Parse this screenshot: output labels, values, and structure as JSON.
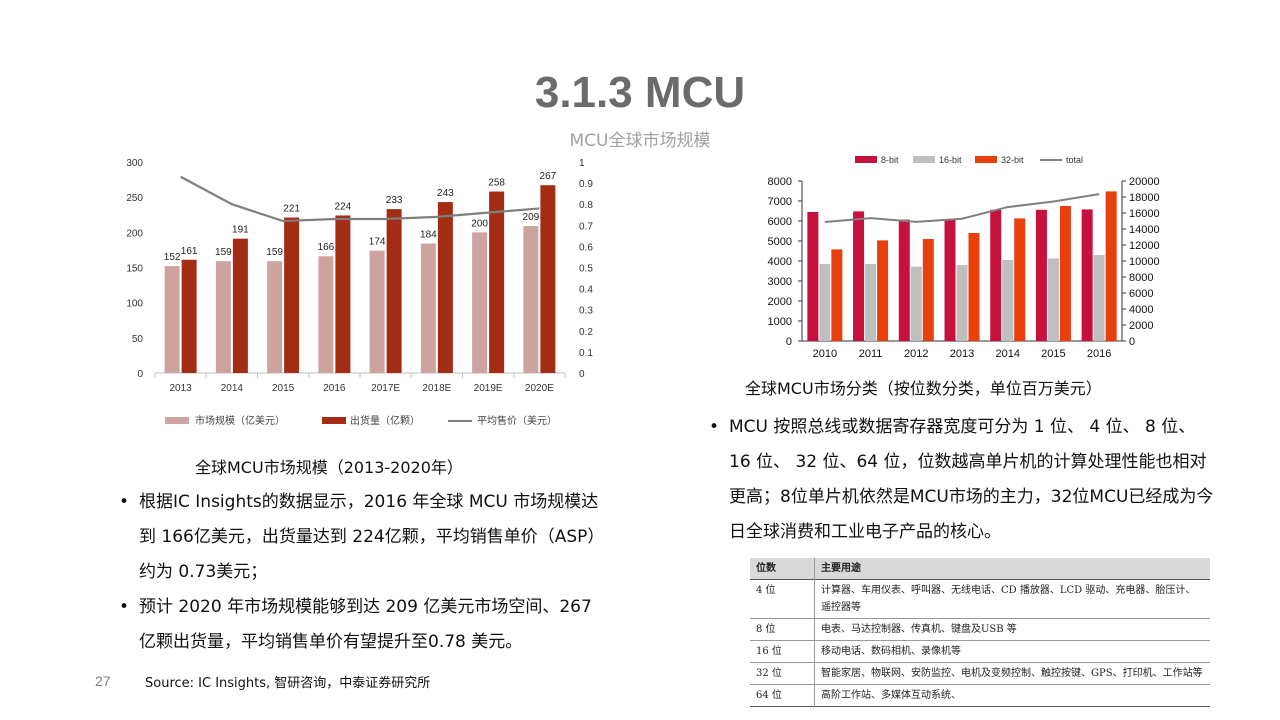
{
  "title": "3.1.3 MCU",
  "subtitle": "MCU全球市场规模",
  "left_caption": "全球MCU市场规模（2013-2020年）",
  "right_caption": "全球MCU市场分类（按位数分类，单位百万美元）",
  "left_bullets": [
    "根据IC Insights的数据显示，2016 年全球 MCU 市场规模达到 166亿美元，出货量达到 224亿颗，平均销售单价（ASP）约为 0.73美元；",
    "预计 2020 年市场规模能够到达 209 亿美元市场空间、267 亿颗出货量，平均销售单价有望提升至0.78 美元。"
  ],
  "right_bullets": [
    "MCU 按照总线或数据寄存器宽度可分为 1 位、 4 位、 8 位、 16 位、 32 位、64 位，位数越高单片机的计算处理性能也相对更高；8位单片机依然是MCU市场的主力，32位MCU已经成为今日全球消费和工业电子产品的核心。"
  ],
  "page_number": "27",
  "source": "Source: IC Insights, 智研咨询，中泰证券研究所",
  "colors": {
    "title_gray": "#6b6b6b",
    "bar_light": "#cda3a0",
    "bar_dark": "#a32c14",
    "line": "#7f7f7f",
    "bit8": "#c8103e",
    "bit16": "#bfbfbf",
    "bit32": "#e8400c",
    "total": "#808080"
  },
  "usage_table": {
    "headers": [
      "位数",
      "主要用途"
    ],
    "rows": [
      [
        "4 位",
        "计算器、车用仪表、呼叫器、无线电话、CD 播放器、LCD 驱动、充电器、胎压计、遥控器等"
      ],
      [
        "8 位",
        "电表、马达控制器、传真机、键盘及USB 等"
      ],
      [
        "16 位",
        "移动电话、数码相机、录像机等"
      ],
      [
        "32 位",
        "智能家居、物联网、安防监控、电机及变频控制、触控按键、GPS、打印机、工作站等"
      ],
      [
        "64 位",
        "高阶工作站、多媒体互动系统、"
      ]
    ]
  },
  "chart_data": [
    {
      "type": "bar",
      "categories": [
        "2013",
        "2014",
        "2015",
        "2016",
        "2017E",
        "2018E",
        "2019E",
        "2020E"
      ],
      "series": [
        {
          "name": "市场规模（亿美元）",
          "values": [
            152,
            159,
            159,
            166,
            174,
            184,
            200,
            209
          ]
        },
        {
          "name": "出货量（亿颗）",
          "values": [
            161,
            191,
            221,
            224,
            233,
            243,
            258,
            267
          ]
        },
        {
          "name": "平均售价（美元）",
          "type": "line",
          "axis": "right",
          "values": [
            0.93,
            0.8,
            0.72,
            0.73,
            0.73,
            0.74,
            0.76,
            0.78
          ]
        }
      ],
      "y_ticks": [
        "0",
        "50",
        "100",
        "150",
        "200",
        "250",
        "300"
      ],
      "y2_ticks": [
        "0",
        "0.1",
        "0.2",
        "0.3",
        "0.4",
        "0.5",
        "0.6",
        "0.7",
        "0.8",
        "0.9",
        "1"
      ],
      "ylim": [
        0,
        300
      ],
      "y2lim": [
        0,
        1
      ],
      "legend_position": "bottom",
      "grid": false
    },
    {
      "type": "bar",
      "categories": [
        "2010",
        "2011",
        "2012",
        "2013",
        "2014",
        "2015",
        "2016"
      ],
      "series": [
        {
          "name": "8-bit",
          "values": [
            6450,
            6480,
            6070,
            6080,
            6560,
            6560,
            6580
          ]
        },
        {
          "name": "16-bit",
          "values": [
            3850,
            3850,
            3720,
            3800,
            4050,
            4130,
            4300
          ]
        },
        {
          "name": "32-bit",
          "values": [
            4580,
            5030,
            5100,
            5400,
            6130,
            6750,
            7480
          ]
        },
        {
          "name": "total",
          "type": "line",
          "axis": "right",
          "values": [
            14880,
            15360,
            14890,
            15280,
            16740,
            17440,
            18360
          ]
        }
      ],
      "y_ticks": [
        "0",
        "1000",
        "2000",
        "3000",
        "4000",
        "5000",
        "6000",
        "7000",
        "8000"
      ],
      "y2_ticks": [
        "0",
        "2000",
        "4000",
        "6000",
        "8000",
        "10000",
        "12000",
        "14000",
        "16000",
        "18000",
        "20000"
      ],
      "ylim": [
        0,
        8000
      ],
      "y2lim": [
        0,
        20000
      ],
      "legend_position": "top",
      "grid": false
    }
  ]
}
